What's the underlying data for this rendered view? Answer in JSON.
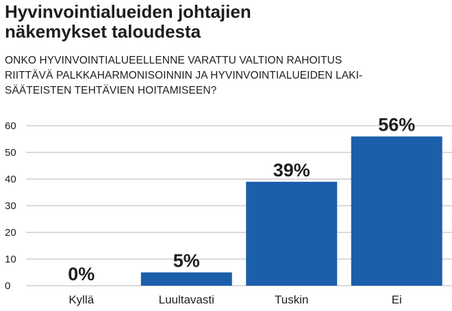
{
  "title_lines": [
    "Hyvinvointialueiden johtajien",
    "näkemykset taloudesta"
  ],
  "subtitle_lines": [
    "ONKO HYVINVOINTIALUEELLENNE VARATTU VALTION RAHOITUS",
    "RIITTÄVÄ PALKKAHARMONISOINNIN JA HYVINVOINTIALUEIDEN LAKI-",
    "SÄÄTEISTEN TEHTÄVIEN HOITAMISEEN?"
  ],
  "colors": {
    "bar": "#1b5fab",
    "grid": "#b4b4b4",
    "text": "#1e1e1e"
  },
  "chart_data": {
    "type": "bar",
    "title": "Hyvinvointialueiden johtajien näkemykset taloudesta",
    "subtitle": "ONKO HYVINVOINTIALUEELLENNE VARATTU VALTION RAHOITUS RIITTÄVÄ PALKKAHARMONISOINNIN JA HYVINVOINTIALUEIDEN LAKISÄÄTEISTEN TEHTÄVIEN HOITAMISEEN?",
    "categories": [
      "Kyllä",
      "Luultavasti",
      "Tuskin",
      "Ei"
    ],
    "values": [
      0,
      5,
      39,
      56
    ],
    "value_labels": [
      "0%",
      "5%",
      "39%",
      "56%"
    ],
    "ylim": [
      0,
      60
    ],
    "yticks": [
      0,
      10,
      20,
      30,
      40,
      50,
      60
    ],
    "ytick_labels": [
      "0",
      "10",
      "20",
      "30",
      "40",
      "50",
      "60"
    ],
    "grid": true,
    "xlabel": "",
    "ylabel": ""
  }
}
